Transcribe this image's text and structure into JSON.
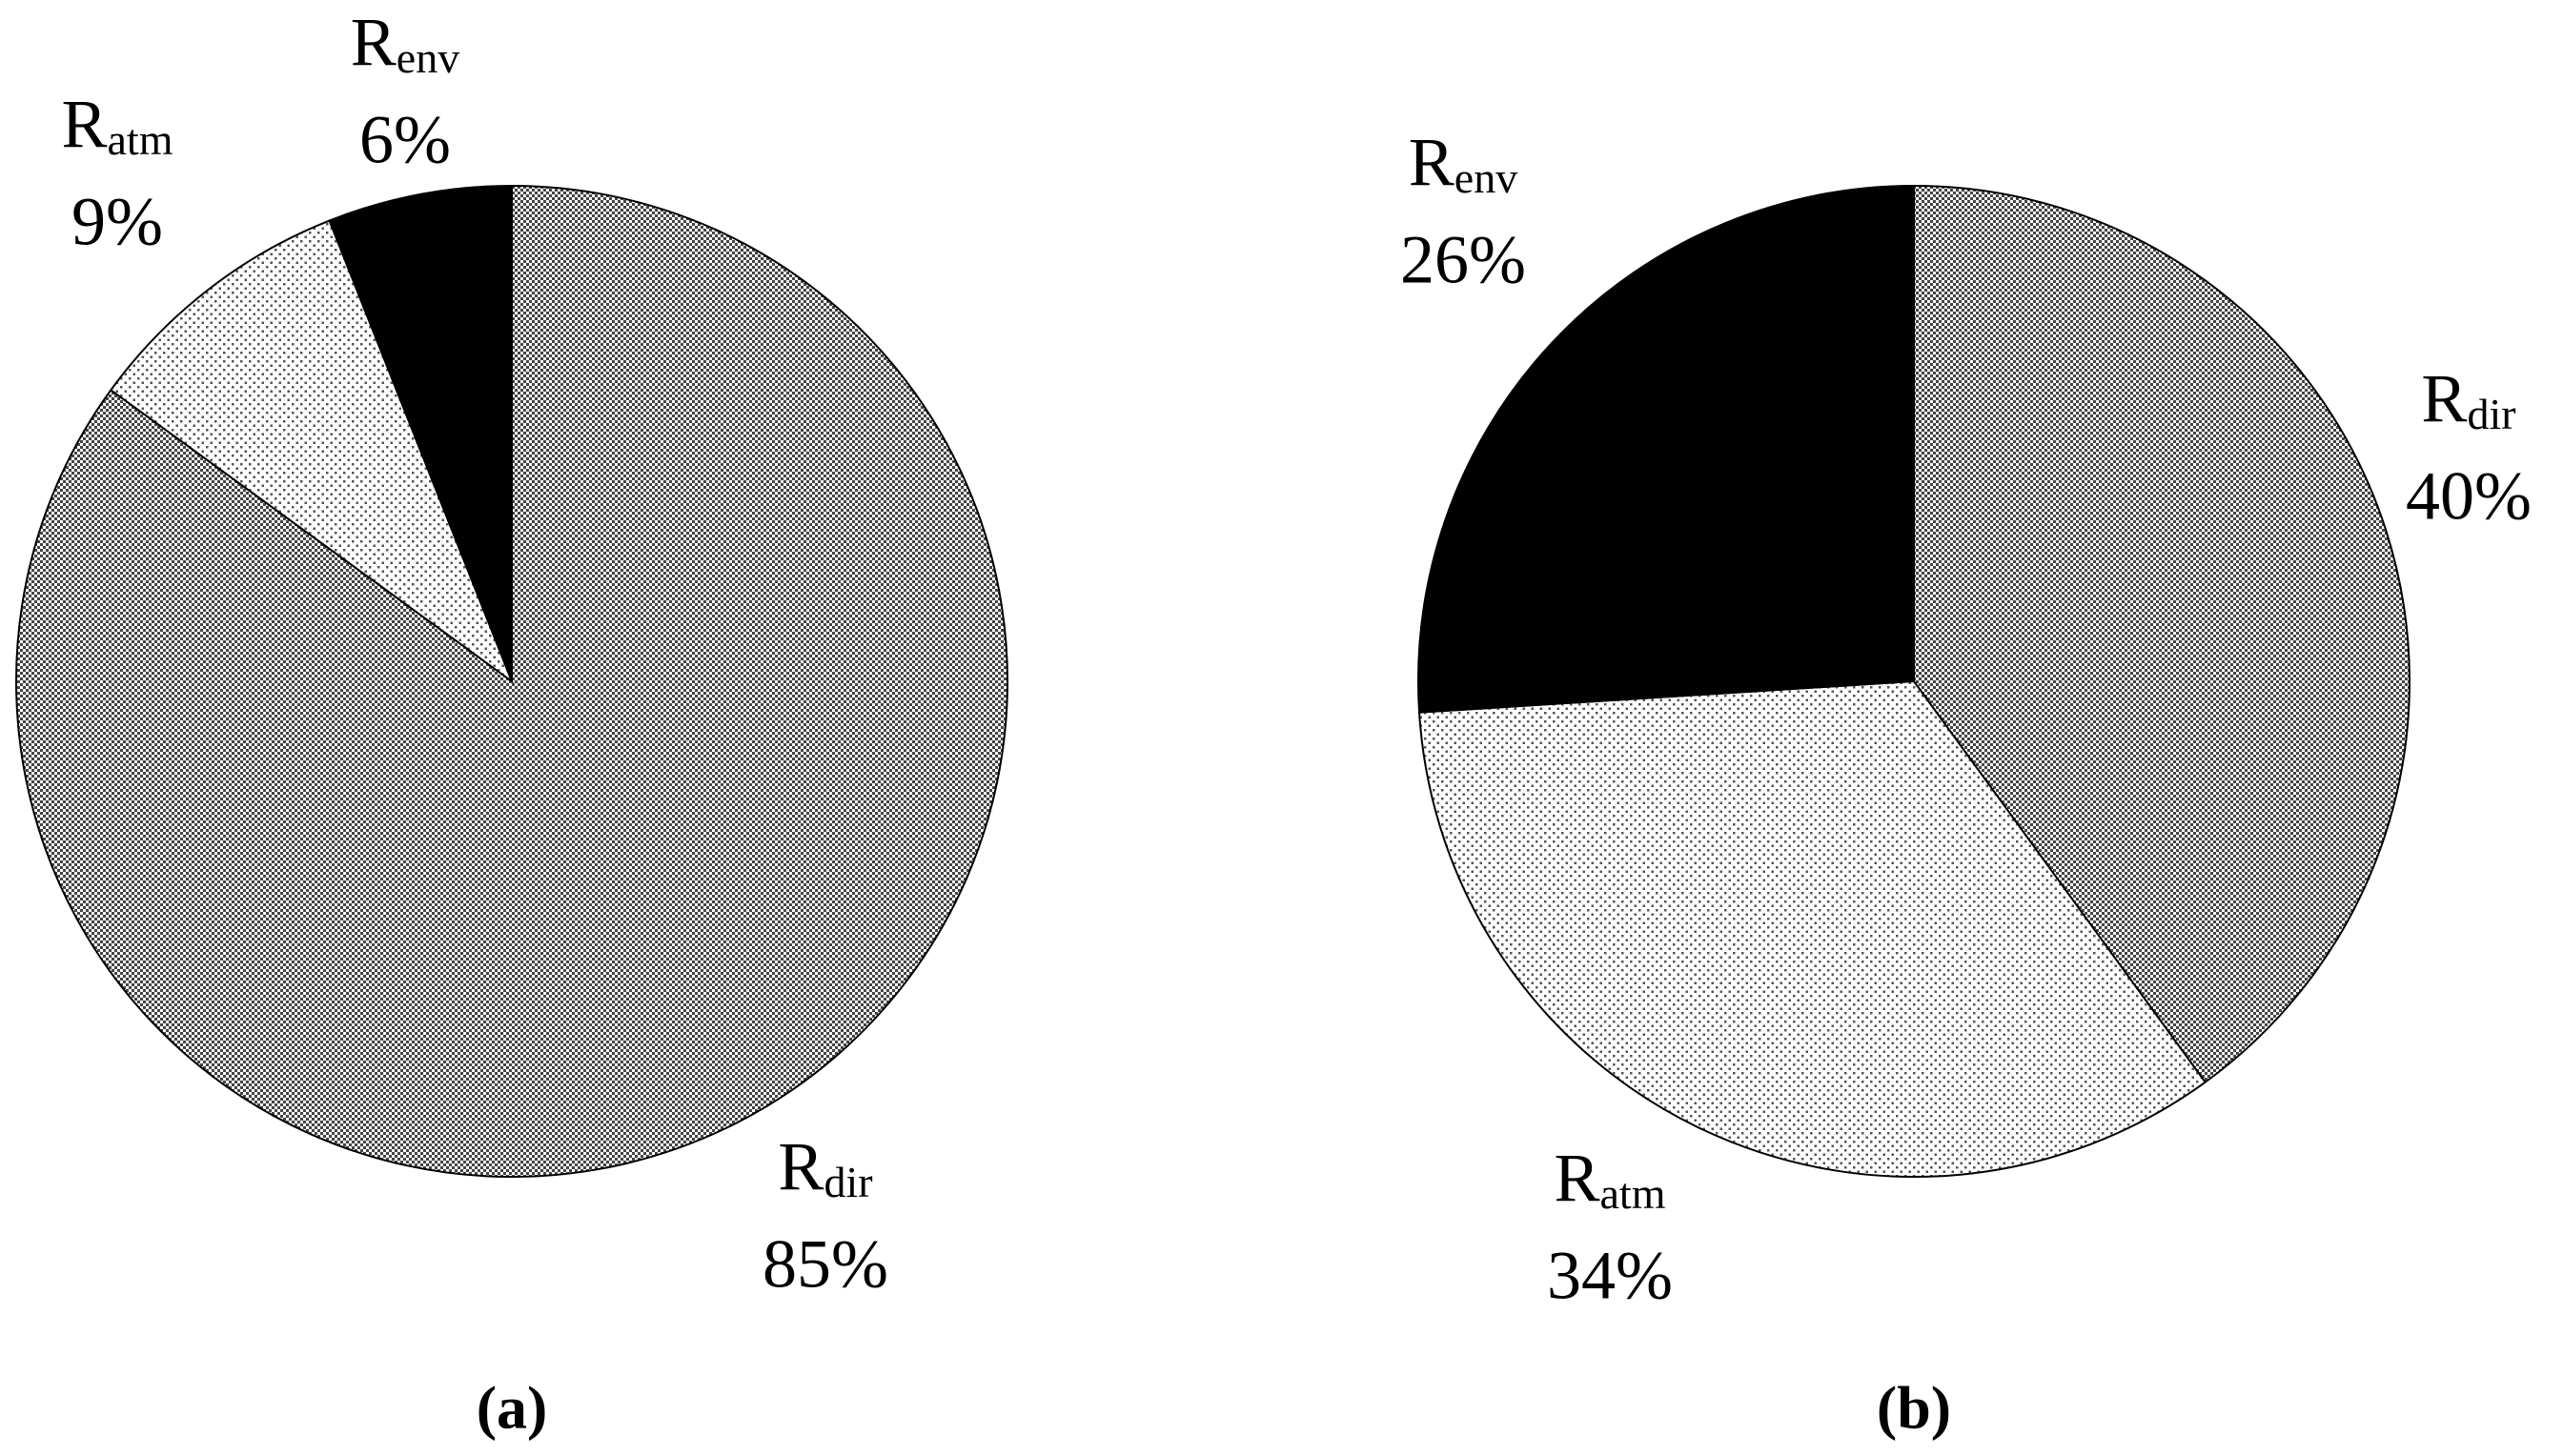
{
  "chart_data": [
    {
      "type": "pie",
      "title": "(a)",
      "categories": [
        "Rdir",
        "Ratm",
        "Renv"
      ],
      "values": [
        85,
        9,
        6
      ],
      "value_labels": [
        "85%",
        "9%",
        "6%"
      ],
      "colors": [
        "#9a9a9a",
        "#e6e6e6",
        "#000000"
      ]
    },
    {
      "type": "pie",
      "title": "(b)",
      "categories": [
        "Rdir",
        "Ratm",
        "Renv"
      ],
      "values": [
        40,
        34,
        26
      ],
      "value_labels": [
        "40%",
        "34%",
        "26%"
      ],
      "colors": [
        "#9a9a9a",
        "#e6e6e6",
        "#000000"
      ]
    }
  ]
}
